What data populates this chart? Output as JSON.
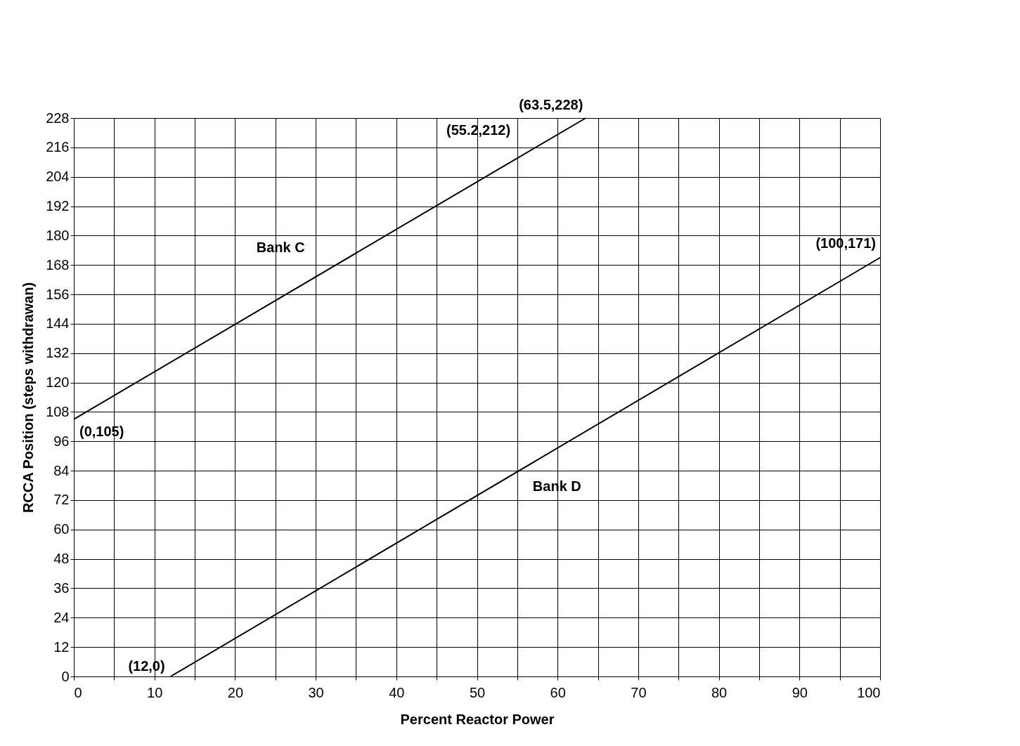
{
  "chart_data": {
    "type": "line",
    "xlabel": "Percent Reactor Power",
    "ylabel": "RCCA Position (steps withdrawan)",
    "series": [
      {
        "name": "Bank C",
        "color": "#000000",
        "x": [
          0,
          55.2,
          63.5
        ],
        "values": [
          105,
          212,
          228
        ]
      },
      {
        "name": "Bank D",
        "color": "#000000",
        "x": [
          12,
          100
        ],
        "values": [
          0,
          171
        ]
      }
    ],
    "xlim": [
      0,
      100
    ],
    "xticks": [
      0,
      {
        "value": 5,
        "label": null
      },
      10,
      {
        "value": 15,
        "label": null
      },
      20,
      {
        "value": 25,
        "label": null
      },
      30,
      {
        "value": 35,
        "label": null
      },
      40,
      {
        "value": 45,
        "label": null
      },
      50,
      {
        "value": 55,
        "label": null
      },
      60,
      {
        "value": 65,
        "label": null
      },
      70,
      {
        "value": 75,
        "label": null
      },
      80,
      {
        "value": 85,
        "label": null
      },
      90,
      {
        "value": 95,
        "label": null
      },
      100
    ],
    "ylim": [
      0,
      228
    ],
    "yticks": [
      0,
      12,
      24,
      36,
      48,
      60,
      72,
      84,
      96,
      108,
      120,
      132,
      144,
      156,
      168,
      180,
      192,
      204,
      216,
      228
    ],
    "annotations": [
      {
        "text": "(63.5,228)",
        "x": 63.5,
        "y": 228
      },
      {
        "text": "(55.2,212)",
        "x": 55.2,
        "y": 212
      },
      {
        "text": "(0,105)",
        "x": 0,
        "y": 105
      },
      {
        "text": "(12,0)",
        "x": 12,
        "y": 0
      },
      {
        "text": "(100,171)",
        "x": 100,
        "y": 171
      }
    ],
    "grid": true,
    "legend": false,
    "marker": "none",
    "line_style": "solid"
  }
}
